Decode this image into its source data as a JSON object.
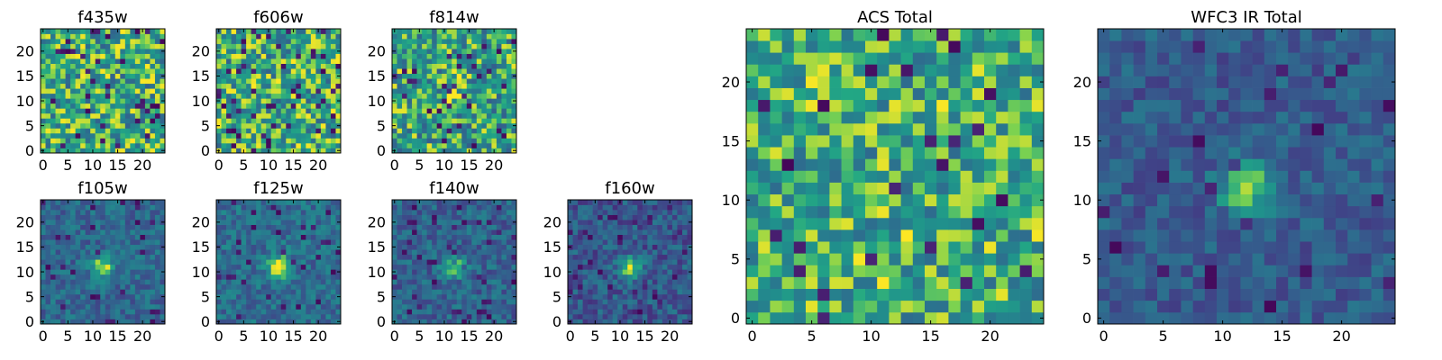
{
  "chart_data": [
    {
      "type": "heatmap",
      "title": "f435w",
      "colormap": "viridis",
      "grid": false,
      "x_range": [
        -0.5,
        24.5
      ],
      "y_range": [
        -0.5,
        24.5
      ],
      "x_ticks": [
        "0",
        "5",
        "10",
        "15",
        "20"
      ],
      "y_ticks": [
        "0",
        "5",
        "10",
        "15",
        "20"
      ],
      "values": [],
      "appearance": "noise, mostly high (green-yellow) values",
      "seed": 11,
      "noise": {
        "base": 0.7,
        "spread": 0.3,
        "dark_prob": 0.05,
        "bright_prob": 0.07
      }
    },
    {
      "type": "heatmap",
      "title": "f606w",
      "colormap": "viridis",
      "grid": false,
      "x_range": [
        -0.5,
        24.5
      ],
      "y_range": [
        -0.5,
        24.5
      ],
      "x_ticks": [
        "0",
        "5",
        "10",
        "15",
        "20"
      ],
      "y_ticks": [
        "0",
        "5",
        "10",
        "15",
        "20"
      ],
      "values": [],
      "appearance": "noise, mostly high (green-yellow) values",
      "seed": 23,
      "noise": {
        "base": 0.7,
        "spread": 0.3,
        "dark_prob": 0.06,
        "bright_prob": 0.08
      }
    },
    {
      "type": "heatmap",
      "title": "f814w",
      "colormap": "viridis",
      "grid": false,
      "x_range": [
        -0.5,
        24.5
      ],
      "y_range": [
        -0.5,
        24.5
      ],
      "x_ticks": [
        "0",
        "5",
        "10",
        "15",
        "20"
      ],
      "y_ticks": [
        "0",
        "5",
        "10",
        "15",
        "20"
      ],
      "values": [],
      "appearance": "noise with faint bright spot near (12, 11)",
      "seed": 37,
      "noise": {
        "base": 0.68,
        "spread": 0.3,
        "dark_prob": 0.05,
        "bright_prob": 0.06
      },
      "source": {
        "x": 12,
        "y": 11,
        "amp": 0.3,
        "sigma": 1.1
      }
    },
    {
      "type": "heatmap",
      "title": "f105w",
      "colormap": "viridis",
      "grid": false,
      "x_range": [
        -0.5,
        24.5
      ],
      "y_range": [
        -0.5,
        24.5
      ],
      "x_ticks": [
        "0",
        "5",
        "10",
        "15",
        "20"
      ],
      "y_ticks": [
        "0",
        "5",
        "10",
        "15",
        "20"
      ],
      "values": [],
      "appearance": "bright source near (12, 11) on mid-level background",
      "seed": 41,
      "noise": {
        "base": 0.42,
        "spread": 0.16,
        "dark_prob": 0.04,
        "bright_prob": 0.0
      },
      "source": {
        "x": 12,
        "y": 11,
        "amp": 0.55,
        "sigma": 1.6
      }
    },
    {
      "type": "heatmap",
      "title": "f125w",
      "colormap": "viridis",
      "grid": false,
      "x_range": [
        -0.5,
        24.5
      ],
      "y_range": [
        -0.5,
        24.5
      ],
      "x_ticks": [
        "0",
        "5",
        "10",
        "15",
        "20"
      ],
      "y_ticks": [
        "0",
        "5",
        "10",
        "15",
        "20"
      ],
      "values": [],
      "appearance": "bright source near (12, 11) on mid-level background",
      "seed": 53,
      "noise": {
        "base": 0.45,
        "spread": 0.16,
        "dark_prob": 0.04,
        "bright_prob": 0.0
      },
      "source": {
        "x": 12,
        "y": 11,
        "amp": 0.55,
        "sigma": 1.7
      }
    },
    {
      "type": "heatmap",
      "title": "f140w",
      "colormap": "viridis",
      "grid": false,
      "x_range": [
        -0.5,
        24.5
      ],
      "y_range": [
        -0.5,
        24.5
      ],
      "x_ticks": [
        "0",
        "5",
        "10",
        "15",
        "20"
      ],
      "y_ticks": [
        "0",
        "5",
        "10",
        "15",
        "20"
      ],
      "values": [],
      "appearance": "bright source near (12, 11) on mid-level background",
      "seed": 67,
      "noise": {
        "base": 0.4,
        "spread": 0.17,
        "dark_prob": 0.06,
        "bright_prob": 0.0
      },
      "source": {
        "x": 12,
        "y": 11,
        "amp": 0.55,
        "sigma": 1.5
      }
    },
    {
      "type": "heatmap",
      "title": "f160w",
      "colormap": "viridis",
      "grid": false,
      "x_range": [
        -0.5,
        24.5
      ],
      "y_range": [
        -0.5,
        24.5
      ],
      "x_ticks": [
        "0",
        "5",
        "10",
        "15",
        "20"
      ],
      "y_ticks": [
        "0",
        "5",
        "10",
        "15",
        "20"
      ],
      "values": [],
      "appearance": "bright source near (12, 11) on darker background",
      "seed": 79,
      "noise": {
        "base": 0.35,
        "spread": 0.17,
        "dark_prob": 0.06,
        "bright_prob": 0.0
      },
      "source": {
        "x": 12,
        "y": 11,
        "amp": 0.62,
        "sigma": 1.5
      }
    },
    {
      "type": "heatmap",
      "title": "ACS Total",
      "colormap": "viridis",
      "grid": false,
      "x_range": [
        -0.5,
        24.5
      ],
      "y_range": [
        -0.5,
        24.5
      ],
      "x_ticks": [
        "0",
        "5",
        "10",
        "15",
        "20"
      ],
      "y_ticks": [
        "0",
        "5",
        "10",
        "15",
        "20"
      ],
      "values": [],
      "appearance": "noise, mostly high (green-yellow) values, few dark pixels",
      "seed": 97,
      "noise": {
        "base": 0.7,
        "spread": 0.26,
        "dark_prob": 0.035,
        "bright_prob": 0.1
      }
    },
    {
      "type": "heatmap",
      "title": "WFC3 IR Total",
      "colormap": "viridis",
      "grid": false,
      "x_range": [
        -0.5,
        24.5
      ],
      "y_range": [
        -0.5,
        24.5
      ],
      "x_ticks": [
        "0",
        "5",
        "10",
        "15",
        "20"
      ],
      "y_ticks": [
        "0",
        "5",
        "10",
        "15",
        "20"
      ],
      "values": [],
      "appearance": "bright source near (12, 11), teal-blue background",
      "seed": 113,
      "noise": {
        "base": 0.36,
        "spread": 0.14,
        "dark_prob": 0.04,
        "bright_prob": 0.0
      },
      "source": {
        "x": 12,
        "y": 11,
        "amp": 0.62,
        "sigma": 1.5
      }
    }
  ]
}
